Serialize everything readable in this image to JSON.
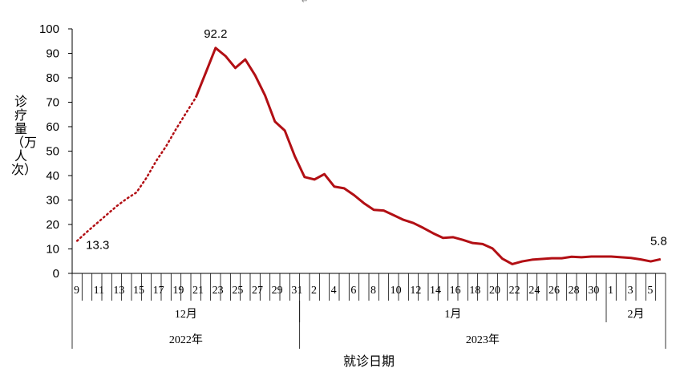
{
  "top_mark": "↵",
  "chart_data": {
    "type": "line",
    "title": "",
    "xlabel": "就诊日期",
    "ylabel": "诊疗量（万人次）",
    "ylim": [
      0,
      100
    ],
    "yticks": [
      0,
      10,
      20,
      30,
      40,
      50,
      60,
      70,
      80,
      90,
      100
    ],
    "grid": false,
    "color": "#b20f14",
    "x": [
      "2022-12-09",
      "2022-12-10",
      "2022-12-11",
      "2022-12-12",
      "2022-12-13",
      "2022-12-14",
      "2022-12-15",
      "2022-12-16",
      "2022-12-17",
      "2022-12-18",
      "2022-12-19",
      "2022-12-20",
      "2022-12-21",
      "2022-12-22",
      "2022-12-23",
      "2022-12-24",
      "2022-12-25",
      "2022-12-26",
      "2022-12-27",
      "2022-12-28",
      "2022-12-29",
      "2022-12-30",
      "2022-12-31",
      "2023-01-01",
      "2023-01-02",
      "2023-01-03",
      "2023-01-04",
      "2023-01-05",
      "2023-01-06",
      "2023-01-07",
      "2023-01-08",
      "2023-01-09",
      "2023-01-10",
      "2023-01-11",
      "2023-01-12",
      "2023-01-13",
      "2023-01-14",
      "2023-01-15",
      "2023-01-16",
      "2023-01-17",
      "2023-01-18",
      "2023-01-19",
      "2023-01-20",
      "2023-01-21",
      "2023-01-22",
      "2023-01-23",
      "2023-01-24",
      "2023-01-25",
      "2023-01-26",
      "2023-01-27",
      "2023-01-28",
      "2023-01-29",
      "2023-01-30",
      "2023-01-31",
      "2023-02-01",
      "2023-02-02",
      "2023-02-03",
      "2023-02-04",
      "2023-02-05",
      "2023-02-06"
    ],
    "tick_labels": [
      "9",
      "",
      "11",
      "",
      "13",
      "",
      "15",
      "",
      "17",
      "",
      "19",
      "",
      "21",
      "",
      "23",
      "",
      "25",
      "",
      "27",
      "",
      "29",
      "",
      "31",
      "",
      "2",
      "",
      "4",
      "",
      "6",
      "",
      "8",
      "",
      "10",
      "",
      "12",
      "",
      "14",
      "",
      "16",
      "",
      "18",
      "",
      "20",
      "",
      "22",
      "",
      "24",
      "",
      "26",
      "",
      "28",
      "",
      "30",
      "",
      "1",
      "",
      "3",
      "",
      "5",
      ""
    ],
    "months": [
      {
        "label": "12月",
        "span": 23
      },
      {
        "label": "1月",
        "span": 31
      },
      {
        "label": "2月",
        "span": 6
      }
    ],
    "years": [
      {
        "label": "2022年",
        "span": 23
      },
      {
        "label": "2023年",
        "span": 37
      }
    ],
    "values": [
      13.3,
      17,
      20.5,
      24,
      27.5,
      30.5,
      33.1,
      39,
      46,
      52,
      59,
      65.5,
      71.9,
      82,
      92.2,
      88.9,
      84,
      87.5,
      81,
      72.8,
      62.1,
      58.4,
      48,
      39.4,
      38.4,
      40.6,
      35.5,
      34.8,
      32,
      28.7,
      26,
      25.7,
      23.8,
      21.9,
      20.6,
      18.6,
      16.4,
      14.5,
      14.8,
      13.7,
      12.4,
      12,
      10.2,
      6,
      3.8,
      4.9,
      5.6,
      5.9,
      6.2,
      6.2,
      6.8,
      6.6,
      6.9,
      6.9,
      6.9,
      6.6,
      6.3,
      5.7,
      4.9,
      5.8
    ],
    "dotted_until_index": 12,
    "annotations": [
      {
        "index": 0,
        "text": "13.3"
      },
      {
        "index": 14,
        "text": "92.2"
      },
      {
        "index": 59,
        "text": "5.8"
      }
    ]
  }
}
